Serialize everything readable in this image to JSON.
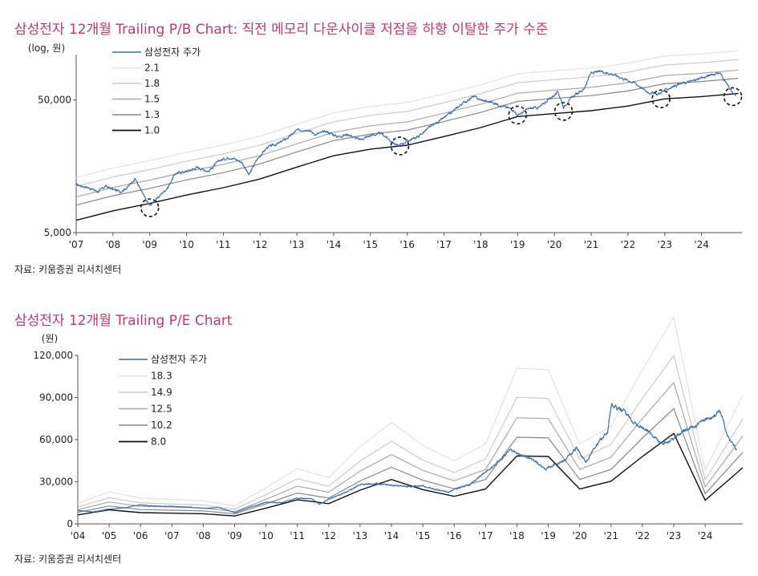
{
  "charts_meta": {
    "pb_title": "삼성전자 12개월 Trailing P/B Chart: 직전 메모리 다운사이클 저점을 하향 이탈한 주가 수준",
    "pe_title": "삼성전자 12개월 Trailing P/E Chart",
    "source": "자료: 키움증권 리서치센터"
  },
  "colors": {
    "title": "#c0396b",
    "price": "#3b6ea8"
  },
  "chart_data": [
    {
      "type": "line",
      "title": "삼성전자 12개월 Trailing P/B Chart: 직전 메모리 다운사이클 저점을 하향 이탈한 주가 수준",
      "ylabel": "(log, 원)",
      "yscale": "log",
      "ylim": [
        5000,
        110000
      ],
      "yticks": [
        5000,
        50000
      ],
      "ytick_labels": [
        "5,000",
        "50,000"
      ],
      "xlim": [
        2007,
        2025.1
      ],
      "xticks": [
        2007,
        2008,
        2009,
        2010,
        2011,
        2012,
        2013,
        2014,
        2015,
        2016,
        2017,
        2018,
        2019,
        2020,
        2021,
        2022,
        2023,
        2024
      ],
      "xtick_labels": [
        "'07",
        "'08",
        "'09",
        "'10",
        "'11",
        "'12",
        "'13",
        "'14",
        "'15",
        "'16",
        "'17",
        "'18",
        "'19",
        "'20",
        "'21",
        "'22",
        "'23",
        "'24"
      ],
      "legend": "top-left",
      "bps": [
        [
          2007,
          6200
        ],
        [
          2008,
          7300
        ],
        [
          2009,
          8300
        ],
        [
          2010,
          9600
        ],
        [
          2011,
          10900
        ],
        [
          2012,
          12700
        ],
        [
          2013,
          15600
        ],
        [
          2014,
          19000
        ],
        [
          2015,
          21300
        ],
        [
          2016,
          22800
        ],
        [
          2017,
          26500
        ],
        [
          2018,
          31000
        ],
        [
          2019,
          37500
        ],
        [
          2020,
          39500
        ],
        [
          2021,
          41500
        ],
        [
          2022,
          45000
        ],
        [
          2023,
          51000
        ],
        [
          2024,
          53000
        ],
        [
          2025,
          56000
        ]
      ],
      "series": [
        {
          "name": "삼성전자 주가",
          "color": "#3b6ea8",
          "width": 1.2,
          "points": [
            [
              2007,
              11500
            ],
            [
              2007.3,
              11000
            ],
            [
              2007.6,
              10200
            ],
            [
              2007.8,
              11200
            ],
            [
              2008,
              10600
            ],
            [
              2008.2,
              10200
            ],
            [
              2008.4,
              11000
            ],
            [
              2008.6,
              12800
            ],
            [
              2008.75,
              10500
            ],
            [
              2008.9,
              8800
            ],
            [
              2009,
              8000
            ],
            [
              2009.2,
              9000
            ],
            [
              2009.5,
              11000
            ],
            [
              2009.7,
              14000
            ],
            [
              2010,
              14500
            ],
            [
              2010.3,
              15500
            ],
            [
              2010.6,
              14500
            ],
            [
              2010.9,
              17500
            ],
            [
              2011.2,
              18500
            ],
            [
              2011.5,
              17000
            ],
            [
              2011.7,
              13500
            ],
            [
              2011.9,
              17500
            ],
            [
              2012.2,
              22000
            ],
            [
              2012.5,
              23500
            ],
            [
              2012.8,
              26500
            ],
            [
              2013,
              29500
            ],
            [
              2013.3,
              30000
            ],
            [
              2013.5,
              27500
            ],
            [
              2013.8,
              29000
            ],
            [
              2014.1,
              26500
            ],
            [
              2014.4,
              27500
            ],
            [
              2014.7,
              25000
            ],
            [
              2015,
              27000
            ],
            [
              2015.3,
              28000
            ],
            [
              2015.6,
              24000
            ],
            [
              2015.75,
              22500
            ],
            [
              2016,
              24500
            ],
            [
              2016.3,
              26500
            ],
            [
              2016.6,
              31000
            ],
            [
              2016.9,
              35000
            ],
            [
              2017.2,
              40000
            ],
            [
              2017.5,
              47000
            ],
            [
              2017.8,
              53000
            ],
            [
              2018,
              50000
            ],
            [
              2018.3,
              48000
            ],
            [
              2018.6,
              45000
            ],
            [
              2018.9,
              42000
            ],
            [
              2019,
              38000
            ],
            [
              2019.3,
              43000
            ],
            [
              2019.6,
              44000
            ],
            [
              2019.9,
              52000
            ],
            [
              2020.1,
              57000
            ],
            [
              2020.25,
              44000
            ],
            [
              2020.5,
              53000
            ],
            [
              2020.8,
              60000
            ],
            [
              2021,
              80000
            ],
            [
              2021.3,
              82000
            ],
            [
              2021.6,
              78000
            ],
            [
              2021.9,
              72000
            ],
            [
              2022.2,
              67000
            ],
            [
              2022.5,
              58000
            ],
            [
              2022.8,
              55000
            ],
            [
              2023.1,
              61000
            ],
            [
              2023.4,
              66000
            ],
            [
              2023.7,
              69000
            ],
            [
              2024,
              73000
            ],
            [
              2024.3,
              78000
            ],
            [
              2024.5,
              80000
            ],
            [
              2024.7,
              65000
            ],
            [
              2024.85,
              56000
            ],
            [
              2024.95,
              53000
            ]
          ]
        },
        {
          "name": "2.1",
          "color": "#e2e2e2",
          "width": 1.2,
          "multiple": 2.1
        },
        {
          "name": "1.8",
          "color": "#cbcbcb",
          "width": 1.2,
          "multiple": 1.8
        },
        {
          "name": "1.5",
          "color": "#a9a9a9",
          "width": 1.2,
          "multiple": 1.5
        },
        {
          "name": "1.3",
          "color": "#878787",
          "width": 1.2,
          "multiple": 1.3
        },
        {
          "name": "1.0",
          "color": "#111111",
          "width": 1.4,
          "multiple": 1.0
        }
      ],
      "annotations": [
        [
          2009,
          7700
        ],
        [
          2015.8,
          22500
        ],
        [
          2019,
          38500
        ],
        [
          2020.25,
          41000
        ],
        [
          2022.9,
          51000
        ],
        [
          2024.85,
          53000
        ]
      ]
    },
    {
      "type": "line",
      "title": "삼성전자 12개월 Trailing P/E Chart",
      "ylabel": "(원)",
      "ylim": [
        0,
        120000
      ],
      "yticks": [
        0,
        30000,
        60000,
        90000,
        120000
      ],
      "ytick_labels": [
        "0",
        "30,000",
        "60,000",
        "90,000",
        "120,000"
      ],
      "xlim": [
        2004,
        2025.2
      ],
      "xticks": [
        2004,
        2005,
        2006,
        2007,
        2008,
        2009,
        2010,
        2011,
        2012,
        2013,
        2014,
        2015,
        2016,
        2017,
        2018,
        2019,
        2020,
        2021,
        2022,
        2023,
        2024
      ],
      "xtick_labels": [
        "'04",
        "'05",
        "'06",
        "'07",
        "'08",
        "'09",
        "'10",
        "'11",
        "'12",
        "'13",
        "'14",
        "'15",
        "'16",
        "'17",
        "'18",
        "'19",
        "'20",
        "'21",
        "'22",
        "'23",
        "'24"
      ],
      "legend": "top-left",
      "eps": [
        [
          2004,
          800
        ],
        [
          2005,
          1250
        ],
        [
          2006,
          1000
        ],
        [
          2007,
          950
        ],
        [
          2008,
          900
        ],
        [
          2009,
          700
        ],
        [
          2010,
          1400
        ],
        [
          2011,
          2150
        ],
        [
          2012,
          1800
        ],
        [
          2013,
          3000
        ],
        [
          2014,
          3950
        ],
        [
          2015,
          3050
        ],
        [
          2016,
          2450
        ],
        [
          2017,
          3100
        ],
        [
          2018,
          6050
        ],
        [
          2019,
          6000
        ],
        [
          2020,
          3100
        ],
        [
          2021,
          3800
        ],
        [
          2022,
          6000
        ],
        [
          2023,
          8050
        ],
        [
          2024,
          2100
        ],
        [
          2025.2,
          5000
        ]
      ],
      "series": [
        {
          "name": "삼성전자 주가",
          "color": "#3b6ea8",
          "width": 1.2,
          "points": [
            [
              2004,
              9500
            ],
            [
              2004.5,
              8500
            ],
            [
              2005,
              10500
            ],
            [
              2005.5,
              11500
            ],
            [
              2006,
              13500
            ],
            [
              2006.5,
              12500
            ],
            [
              2007,
              12500
            ],
            [
              2007.5,
              12000
            ],
            [
              2008,
              11000
            ],
            [
              2008.5,
              11500
            ],
            [
              2008.8,
              9500
            ],
            [
              2009,
              8000
            ],
            [
              2009.5,
              12000
            ],
            [
              2010,
              15500
            ],
            [
              2010.5,
              15000
            ],
            [
              2011,
              18500
            ],
            [
              2011.5,
              17500
            ],
            [
              2011.7,
              14000
            ],
            [
              2012,
              17500
            ],
            [
              2012.5,
              22000
            ],
            [
              2013,
              28000
            ],
            [
              2013.5,
              28500
            ],
            [
              2014,
              27500
            ],
            [
              2014.5,
              26500
            ],
            [
              2015,
              27000
            ],
            [
              2015.5,
              24000
            ],
            [
              2015.8,
              22500
            ],
            [
              2016,
              24500
            ],
            [
              2016.5,
              28000
            ],
            [
              2017,
              37000
            ],
            [
              2017.5,
              46000
            ],
            [
              2017.8,
              53000
            ],
            [
              2018,
              50000
            ],
            [
              2018.5,
              46000
            ],
            [
              2018.9,
              39000
            ],
            [
              2019,
              40000
            ],
            [
              2019.5,
              45000
            ],
            [
              2019.9,
              54000
            ],
            [
              2020.2,
              44000
            ],
            [
              2020.5,
              55000
            ],
            [
              2020.9,
              66000
            ],
            [
              2021,
              85000
            ],
            [
              2021.4,
              80000
            ],
            [
              2021.8,
              71000
            ],
            [
              2022.2,
              66000
            ],
            [
              2022.6,
              57000
            ],
            [
              2022.9,
              59000
            ],
            [
              2023.3,
              66000
            ],
            [
              2023.7,
              70000
            ],
            [
              2024,
              74000
            ],
            [
              2024.5,
              80000
            ],
            [
              2024.7,
              63000
            ],
            [
              2024.9,
              56000
            ],
            [
              2025,
              53000
            ]
          ]
        },
        {
          "name": "18.3",
          "color": "#e2e2e2",
          "width": 1.2,
          "multiple": 18.3
        },
        {
          "name": "14.9",
          "color": "#cbcbcb",
          "width": 1.2,
          "multiple": 14.9
        },
        {
          "name": "12.5",
          "color": "#a9a9a9",
          "width": 1.2,
          "multiple": 12.5
        },
        {
          "name": "10.2",
          "color": "#878787",
          "width": 1.2,
          "multiple": 10.2
        },
        {
          "name": "8.0",
          "color": "#111111",
          "width": 1.4,
          "multiple": 8.0
        }
      ]
    }
  ]
}
